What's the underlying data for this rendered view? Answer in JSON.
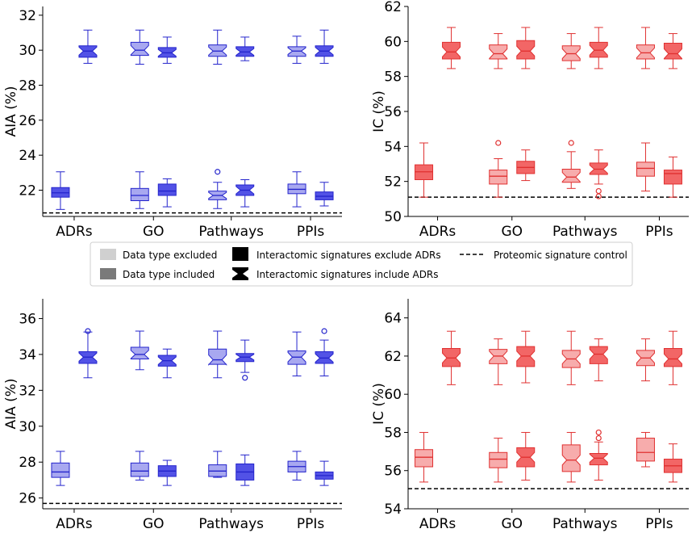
{
  "colors": {
    "blue_dark": "#5252e6",
    "blue_light": "#a8a8f0",
    "blue_edge": "#2424cc",
    "red_dark": "#f26666",
    "red_light": "#f7acac",
    "red_edge": "#e03030"
  },
  "legend": {
    "excluded": "Data type excluded",
    "included": "Data type included",
    "sig_exclude": "Interactomic signatures exclude ADRs",
    "sig_include": "Interactomic signatures include ADRs",
    "control": "Proteomic signature control"
  },
  "chart_data": [
    {
      "type": "boxplot",
      "panel": "top-left",
      "ylabel": "AIA (%)",
      "ylim": [
        20.5,
        32.5
      ],
      "yticks": [
        22,
        24,
        26,
        28,
        30,
        32
      ],
      "palette": "blue",
      "categories": [
        "ADRs",
        "GO",
        "Pathways",
        "PPIs"
      ],
      "control": 20.7,
      "boxes": [
        {
          "cat": 0,
          "slot": 0,
          "style": "dark",
          "notch": false,
          "stats": [
            20.9,
            21.6,
            21.85,
            22.15,
            23.05
          ],
          "fliers": []
        },
        {
          "cat": 0,
          "slot": 1,
          "style": "dark",
          "notch": true,
          "stats": [
            29.25,
            29.6,
            29.95,
            30.25,
            31.15
          ],
          "fliers": []
        },
        {
          "cat": 1,
          "slot": 0,
          "style": "light",
          "notch": false,
          "stats": [
            20.95,
            21.4,
            21.7,
            22.1,
            23.05
          ],
          "fliers": []
        },
        {
          "cat": 1,
          "slot": 0,
          "style": "light",
          "notch": true,
          "stats": [
            29.2,
            29.7,
            30.0,
            30.45,
            31.15
          ],
          "fliers": []
        },
        {
          "cat": 1,
          "slot": 1,
          "style": "dark",
          "notch": false,
          "stats": [
            21.05,
            21.7,
            21.95,
            22.35,
            22.65
          ],
          "fliers": []
        },
        {
          "cat": 1,
          "slot": 1,
          "style": "dark",
          "notch": true,
          "stats": [
            29.25,
            29.6,
            29.85,
            30.15,
            30.75
          ],
          "fliers": []
        },
        {
          "cat": 2,
          "slot": 0,
          "style": "light",
          "notch": true,
          "stats": [
            20.95,
            21.45,
            21.7,
            21.95,
            22.45
          ],
          "fliers": [
            23.05
          ]
        },
        {
          "cat": 2,
          "slot": 0,
          "style": "light",
          "notch": true,
          "stats": [
            29.2,
            29.65,
            29.95,
            30.3,
            31.15
          ],
          "fliers": []
        },
        {
          "cat": 2,
          "slot": 1,
          "style": "dark",
          "notch": true,
          "stats": [
            21.05,
            21.7,
            22.0,
            22.3,
            22.6
          ],
          "fliers": []
        },
        {
          "cat": 2,
          "slot": 1,
          "style": "dark",
          "notch": true,
          "stats": [
            29.4,
            29.65,
            29.9,
            30.2,
            30.75
          ],
          "fliers": []
        },
        {
          "cat": 3,
          "slot": 0,
          "style": "light",
          "notch": false,
          "stats": [
            21.05,
            21.8,
            22.05,
            22.35,
            23.05
          ],
          "fliers": []
        },
        {
          "cat": 3,
          "slot": 0,
          "style": "light",
          "notch": true,
          "stats": [
            29.25,
            29.65,
            29.95,
            30.2,
            30.8
          ],
          "fliers": []
        },
        {
          "cat": 3,
          "slot": 1,
          "style": "dark",
          "notch": false,
          "stats": [
            21.1,
            21.45,
            21.65,
            21.9,
            22.45
          ],
          "fliers": []
        },
        {
          "cat": 3,
          "slot": 1,
          "style": "dark",
          "notch": true,
          "stats": [
            29.25,
            29.65,
            29.95,
            30.25,
            31.15
          ],
          "fliers": []
        }
      ]
    },
    {
      "type": "boxplot",
      "panel": "top-right",
      "ylabel": "IC (%)",
      "ylim": [
        50,
        62
      ],
      "yticks": [
        50,
        52,
        54,
        56,
        58,
        60,
        62
      ],
      "palette": "red",
      "categories": [
        "ADRs",
        "GO",
        "Pathways",
        "PPIs"
      ],
      "control": 51.1,
      "boxes": [
        {
          "cat": 0,
          "slot": 0,
          "style": "dark",
          "notch": false,
          "stats": [
            51.1,
            52.1,
            52.55,
            52.95,
            54.2
          ],
          "fliers": []
        },
        {
          "cat": 0,
          "slot": 1,
          "style": "dark",
          "notch": true,
          "stats": [
            58.45,
            59.0,
            59.4,
            59.95,
            60.8
          ],
          "fliers": []
        },
        {
          "cat": 1,
          "slot": 0,
          "style": "light",
          "notch": false,
          "stats": [
            51.1,
            51.85,
            52.3,
            52.65,
            53.3
          ],
          "fliers": [
            54.2
          ]
        },
        {
          "cat": 1,
          "slot": 0,
          "style": "light",
          "notch": true,
          "stats": [
            58.45,
            59.0,
            59.3,
            59.8,
            60.45
          ],
          "fliers": []
        },
        {
          "cat": 1,
          "slot": 1,
          "style": "dark",
          "notch": false,
          "stats": [
            52.05,
            52.45,
            52.8,
            53.15,
            53.8
          ],
          "fliers": []
        },
        {
          "cat": 1,
          "slot": 1,
          "style": "dark",
          "notch": true,
          "stats": [
            58.45,
            59.0,
            59.45,
            60.05,
            60.8
          ],
          "fliers": []
        },
        {
          "cat": 2,
          "slot": 0,
          "style": "light",
          "notch": true,
          "stats": [
            51.6,
            51.95,
            52.25,
            52.7,
            53.7
          ],
          "fliers": [
            54.2
          ]
        },
        {
          "cat": 2,
          "slot": 0,
          "style": "light",
          "notch": true,
          "stats": [
            58.45,
            58.9,
            59.3,
            59.75,
            60.45
          ],
          "fliers": []
        },
        {
          "cat": 2,
          "slot": 1,
          "style": "dark",
          "notch": true,
          "stats": [
            51.85,
            52.4,
            52.7,
            53.05,
            53.8
          ],
          "fliers": [
            51.15,
            51.45
          ]
        },
        {
          "cat": 2,
          "slot": 1,
          "style": "dark",
          "notch": true,
          "stats": [
            58.45,
            59.1,
            59.5,
            59.95,
            60.8
          ],
          "fliers": []
        },
        {
          "cat": 3,
          "slot": 0,
          "style": "light",
          "notch": false,
          "stats": [
            51.45,
            52.3,
            52.75,
            53.1,
            54.2
          ],
          "fliers": []
        },
        {
          "cat": 3,
          "slot": 0,
          "style": "light",
          "notch": true,
          "stats": [
            58.45,
            59.0,
            59.35,
            59.8,
            60.8
          ],
          "fliers": []
        },
        {
          "cat": 3,
          "slot": 1,
          "style": "dark",
          "notch": false,
          "stats": [
            51.1,
            51.85,
            52.45,
            52.65,
            53.4
          ],
          "fliers": []
        },
        {
          "cat": 3,
          "slot": 1,
          "style": "dark",
          "notch": true,
          "stats": [
            58.45,
            59.0,
            59.3,
            59.9,
            60.45
          ],
          "fliers": []
        }
      ]
    },
    {
      "type": "boxplot",
      "panel": "bottom-left",
      "ylabel": "AIA (%)",
      "ylim": [
        25.4,
        37.1
      ],
      "yticks": [
        26,
        28,
        30,
        32,
        34,
        36
      ],
      "palette": "blue",
      "categories": [
        "ADRs",
        "GO",
        "Pathways",
        "PPIs"
      ],
      "control": 25.7,
      "boxes": [
        {
          "cat": 0,
          "slot": 0,
          "style": "light",
          "notch": false,
          "stats": [
            26.7,
            27.15,
            27.45,
            27.95,
            28.6
          ],
          "fliers": []
        },
        {
          "cat": 0,
          "slot": 1,
          "style": "dark",
          "notch": true,
          "stats": [
            32.7,
            33.5,
            33.85,
            34.15,
            35.25
          ],
          "fliers": [
            35.3
          ]
        },
        {
          "cat": 1,
          "slot": 0,
          "style": "light",
          "notch": false,
          "stats": [
            27.0,
            27.2,
            27.5,
            27.95,
            28.6
          ],
          "fliers": []
        },
        {
          "cat": 1,
          "slot": 0,
          "style": "light",
          "notch": true,
          "stats": [
            33.15,
            33.75,
            34.0,
            34.4,
            35.3
          ],
          "fliers": []
        },
        {
          "cat": 1,
          "slot": 1,
          "style": "dark",
          "notch": false,
          "stats": [
            26.7,
            27.2,
            27.5,
            27.8,
            28.1
          ],
          "fliers": []
        },
        {
          "cat": 1,
          "slot": 1,
          "style": "dark",
          "notch": true,
          "stats": [
            32.7,
            33.35,
            33.65,
            33.95,
            34.3
          ],
          "fliers": []
        },
        {
          "cat": 2,
          "slot": 0,
          "style": "light",
          "notch": false,
          "stats": [
            27.15,
            27.2,
            27.5,
            27.85,
            28.6
          ],
          "fliers": []
        },
        {
          "cat": 2,
          "slot": 0,
          "style": "light",
          "notch": true,
          "stats": [
            32.7,
            33.45,
            33.7,
            34.3,
            35.3
          ],
          "fliers": []
        },
        {
          "cat": 2,
          "slot": 1,
          "style": "dark",
          "notch": false,
          "stats": [
            26.7,
            27.0,
            27.45,
            27.9,
            28.4
          ],
          "fliers": []
        },
        {
          "cat": 2,
          "slot": 1,
          "style": "dark",
          "notch": true,
          "stats": [
            33.0,
            33.6,
            33.85,
            34.05,
            34.8
          ],
          "fliers": [
            32.7
          ]
        },
        {
          "cat": 3,
          "slot": 0,
          "style": "light",
          "notch": false,
          "stats": [
            27.0,
            27.45,
            27.75,
            28.05,
            28.6
          ],
          "fliers": []
        },
        {
          "cat": 3,
          "slot": 0,
          "style": "light",
          "notch": true,
          "stats": [
            32.8,
            33.45,
            33.85,
            34.2,
            35.25
          ],
          "fliers": []
        },
        {
          "cat": 3,
          "slot": 1,
          "style": "dark",
          "notch": false,
          "stats": [
            26.7,
            27.05,
            27.25,
            27.45,
            28.05
          ],
          "fliers": []
        },
        {
          "cat": 3,
          "slot": 1,
          "style": "dark",
          "notch": true,
          "stats": [
            32.8,
            33.5,
            33.8,
            34.15,
            34.8
          ],
          "fliers": [
            35.3
          ]
        }
      ]
    },
    {
      "type": "boxplot",
      "panel": "bottom-right",
      "ylabel": "IC (%)",
      "ylim": [
        54,
        65
      ],
      "yticks": [
        54,
        56,
        58,
        60,
        62,
        64
      ],
      "palette": "red",
      "categories": [
        "ADRs",
        "GO",
        "Pathways",
        "PPIs"
      ],
      "control": 55.05,
      "boxes": [
        {
          "cat": 0,
          "slot": 0,
          "style": "light",
          "notch": false,
          "stats": [
            55.4,
            56.2,
            56.7,
            57.1,
            58.0
          ],
          "fliers": []
        },
        {
          "cat": 0,
          "slot": 1,
          "style": "dark",
          "notch": true,
          "stats": [
            60.5,
            61.45,
            61.9,
            62.4,
            63.3
          ],
          "fliers": []
        },
        {
          "cat": 1,
          "slot": 0,
          "style": "light",
          "notch": false,
          "stats": [
            55.4,
            56.15,
            56.6,
            56.95,
            57.7
          ],
          "fliers": []
        },
        {
          "cat": 1,
          "slot": 0,
          "style": "light",
          "notch": true,
          "stats": [
            60.5,
            61.6,
            62.0,
            62.35,
            62.9
          ],
          "fliers": []
        },
        {
          "cat": 1,
          "slot": 1,
          "style": "dark",
          "notch": true,
          "stats": [
            55.5,
            56.2,
            56.7,
            57.2,
            58.0
          ],
          "fliers": []
        },
        {
          "cat": 1,
          "slot": 1,
          "style": "dark",
          "notch": true,
          "stats": [
            60.6,
            61.45,
            62.0,
            62.5,
            63.3
          ],
          "fliers": []
        },
        {
          "cat": 2,
          "slot": 0,
          "style": "light",
          "notch": true,
          "stats": [
            55.4,
            55.95,
            56.55,
            57.35,
            58.0
          ],
          "fliers": []
        },
        {
          "cat": 2,
          "slot": 0,
          "style": "light",
          "notch": true,
          "stats": [
            60.5,
            61.4,
            61.85,
            62.3,
            63.3
          ],
          "fliers": []
        },
        {
          "cat": 2,
          "slot": 1,
          "style": "dark",
          "notch": true,
          "stats": [
            55.5,
            56.3,
            56.65,
            56.9,
            57.5
          ],
          "fliers": [
            57.7,
            58.0
          ]
        },
        {
          "cat": 2,
          "slot": 1,
          "style": "dark",
          "notch": true,
          "stats": [
            60.7,
            61.6,
            62.1,
            62.5,
            62.9
          ],
          "fliers": []
        },
        {
          "cat": 3,
          "slot": 0,
          "style": "light",
          "notch": false,
          "stats": [
            56.2,
            56.5,
            56.95,
            57.7,
            58.0
          ],
          "fliers": []
        },
        {
          "cat": 3,
          "slot": 0,
          "style": "light",
          "notch": true,
          "stats": [
            60.7,
            61.5,
            61.9,
            62.3,
            62.9
          ],
          "fliers": []
        },
        {
          "cat": 3,
          "slot": 1,
          "style": "dark",
          "notch": false,
          "stats": [
            55.4,
            55.9,
            56.25,
            56.6,
            57.4
          ],
          "fliers": []
        },
        {
          "cat": 3,
          "slot": 1,
          "style": "dark",
          "notch": true,
          "stats": [
            60.5,
            61.45,
            61.85,
            62.4,
            63.3
          ],
          "fliers": []
        }
      ]
    }
  ]
}
